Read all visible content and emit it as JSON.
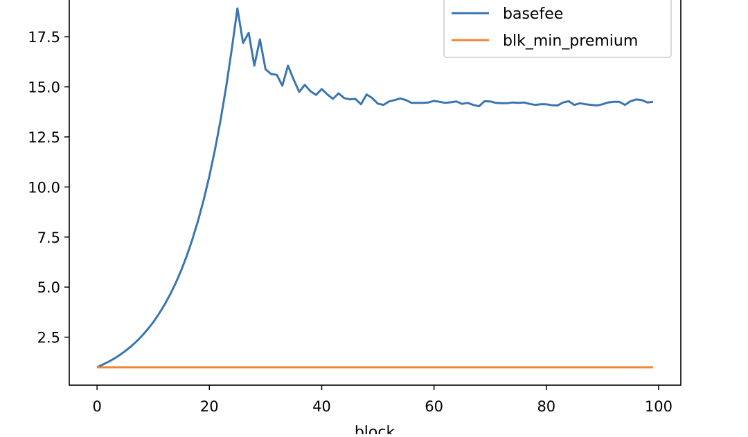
{
  "chart_data": {
    "type": "line",
    "xlabel": "block",
    "ylabel": "",
    "xlim": [
      -4.95,
      103.95
    ],
    "ylim": [
      0.104,
      19.82
    ],
    "xticks": [
      0,
      20,
      40,
      60,
      80,
      100
    ],
    "xtick_labels": [
      "0",
      "20",
      "40",
      "60",
      "80",
      "100"
    ],
    "yticks": [
      2.5,
      5.0,
      7.5,
      10.0,
      12.5,
      15.0,
      17.5
    ],
    "ytick_labels": [
      "2.5",
      "5.0",
      "7.5",
      "10.0",
      "12.5",
      "15.0",
      "17.5"
    ],
    "grid": false,
    "legend": "top-right",
    "series": [
      {
        "name": "basefee",
        "color": "#3a75b0",
        "x_start": 0,
        "values": [
          1.0,
          1.125,
          1.266,
          1.424,
          1.602,
          1.802,
          2.027,
          2.281,
          2.566,
          2.887,
          3.247,
          3.653,
          4.11,
          4.624,
          5.202,
          5.852,
          6.583,
          7.406,
          8.332,
          9.373,
          10.545,
          11.863,
          13.346,
          15.014,
          16.891,
          18.92,
          17.19,
          17.7,
          16.06,
          17.37,
          15.88,
          15.64,
          15.6,
          15.06,
          16.06,
          15.37,
          14.75,
          15.1,
          14.78,
          14.6,
          14.89,
          14.62,
          14.4,
          14.68,
          14.44,
          14.37,
          14.4,
          14.13,
          14.62,
          14.44,
          14.16,
          14.1,
          14.27,
          14.34,
          14.42,
          14.34,
          14.2,
          14.2,
          14.2,
          14.22,
          14.3,
          14.25,
          14.2,
          14.23,
          14.27,
          14.15,
          14.2,
          14.1,
          14.03,
          14.28,
          14.27,
          14.2,
          14.18,
          14.18,
          14.22,
          14.2,
          14.22,
          14.15,
          14.1,
          14.13,
          14.13,
          14.08,
          14.07,
          14.22,
          14.28,
          14.1,
          14.18,
          14.13,
          14.1,
          14.07,
          14.13,
          14.22,
          14.25,
          14.25,
          14.1,
          14.28,
          14.37,
          14.34,
          14.22,
          14.25
        ]
      },
      {
        "name": "blk_min_premium",
        "color": "#ef8636",
        "x_start": 0,
        "values": [
          1,
          1,
          1,
          1,
          1,
          1,
          1,
          1,
          1,
          1,
          1,
          1,
          1,
          1,
          1,
          1,
          1,
          1,
          1,
          1,
          1,
          1,
          1,
          1,
          1,
          1,
          1,
          1,
          1,
          1,
          1,
          1,
          1,
          1,
          1,
          1,
          1,
          1,
          1,
          1,
          1,
          1,
          1,
          1,
          1,
          1,
          1,
          1,
          1,
          1,
          1,
          1,
          1,
          1,
          1,
          1,
          1,
          1,
          1,
          1,
          1,
          1,
          1,
          1,
          1,
          1,
          1,
          1,
          1,
          1,
          1,
          1,
          1,
          1,
          1,
          1,
          1,
          1,
          1,
          1,
          1,
          1,
          1,
          1,
          1,
          1,
          1,
          1,
          1,
          1,
          1,
          1,
          1,
          1,
          1,
          1,
          1,
          1,
          1,
          1
        ]
      }
    ]
  }
}
